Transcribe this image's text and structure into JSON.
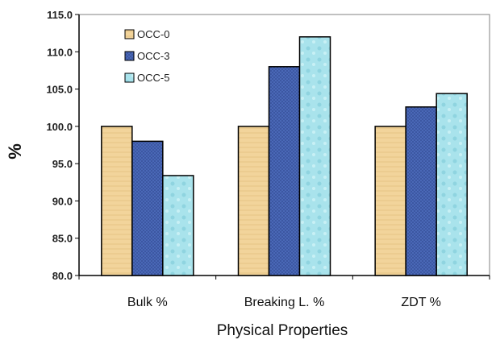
{
  "chart_data": {
    "type": "bar",
    "categories": [
      "Bulk %",
      "Breaking  L. %",
      "ZDT %"
    ],
    "series": [
      {
        "name": "OCC-0",
        "values": [
          100.0,
          100.0,
          100.0
        ],
        "color": "#f2d49b"
      },
      {
        "name": "OCC-3",
        "values": [
          98.0,
          108.0,
          102.6
        ],
        "color": "#4f6fbf"
      },
      {
        "name": "OCC-5",
        "values": [
          93.4,
          112.0,
          104.4
        ],
        "color": "#a9e3ec"
      }
    ],
    "title": "",
    "xlabel": "Physical  Properties",
    "ylabel": "%",
    "ylim": [
      80.0,
      115.0
    ],
    "yticks": [
      "80.0",
      "85.0",
      "90.0",
      "95.0",
      "100.0",
      "105.0",
      "110.0",
      "115.0"
    ],
    "grid": false,
    "legend_position": "top-left"
  }
}
